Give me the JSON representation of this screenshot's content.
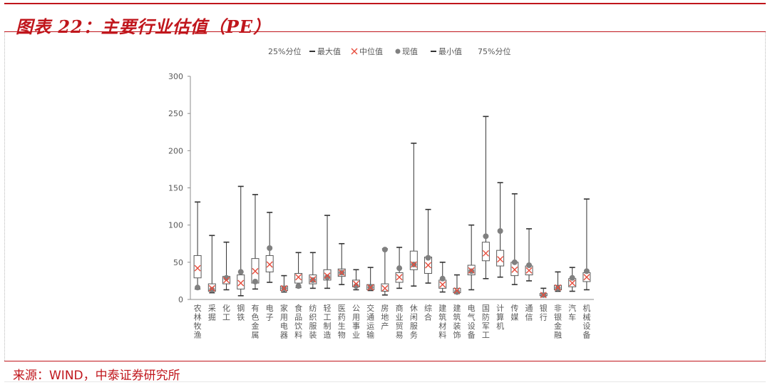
{
  "header": {
    "title": "图表 22：主要行业估值（PE）"
  },
  "footer": {
    "source": "来源：WIND，中泰证券研究所"
  },
  "colors": {
    "accent": "#c0161c",
    "box": "#595959",
    "median": "#e74c3c",
    "current": "#808080"
  },
  "chart_data": {
    "type": "boxplot",
    "title": "",
    "xlabel": "",
    "ylabel": "",
    "ylim": [
      0,
      300
    ],
    "yticks": [
      0,
      50,
      100,
      150,
      200,
      250,
      300
    ],
    "grid": false,
    "legend_position": "top-center",
    "legend": [
      "25%分位",
      "最大值",
      "中位值",
      "现值",
      "最小值",
      "75%分位"
    ],
    "categories": [
      "农林牧渔",
      "采掘",
      "化工",
      "钢铁",
      "有色金属",
      "电子",
      "家用电器",
      "食品饮料",
      "纺织服装",
      "轻工制造",
      "医药生物",
      "公用事业",
      "交通运输",
      "房地产",
      "商业贸易",
      "休闲服务",
      "综合",
      "建筑材料",
      "建筑装饰",
      "电气设备",
      "国防军工",
      "计算机",
      "传媒",
      "通信",
      "银行",
      "非银金融",
      "汽车",
      "机械设备"
    ],
    "series": [
      {
        "name": "25%分位",
        "values": [
          29,
          11,
          21,
          14,
          22,
          37,
          12,
          22,
          21,
          26,
          31,
          17,
          13,
          11,
          23,
          40,
          35,
          15,
          9,
          33,
          52,
          45,
          32,
          33,
          5,
          13,
          17,
          24
        ]
      },
      {
        "name": "最大值",
        "values": [
          131,
          86,
          77,
          152,
          141,
          117,
          32,
          63,
          63,
          113,
          75,
          40,
          43,
          68,
          70,
          210,
          121,
          50,
          33,
          100,
          246,
          157,
          142,
          95,
          15,
          37,
          43,
          135
        ]
      },
      {
        "name": "中位值",
        "values": [
          42,
          15,
          26,
          22,
          38,
          47,
          15,
          30,
          27,
          32,
          36,
          21,
          16,
          15,
          30,
          47,
          46,
          20,
          12,
          39,
          62,
          54,
          40,
          39,
          6,
          16,
          22,
          30
        ]
      },
      {
        "name": "现值",
        "values": [
          16,
          13,
          29,
          37,
          24,
          69,
          15,
          18,
          26,
          30,
          36,
          18,
          16,
          67,
          42,
          47,
          56,
          28,
          10,
          38,
          85,
          92,
          50,
          46,
          6,
          15,
          29,
          38
        ]
      },
      {
        "name": "最小值",
        "values": [
          14,
          9,
          13,
          5,
          14,
          23,
          10,
          16,
          15,
          15,
          20,
          13,
          12,
          6,
          15,
          18,
          22,
          10,
          8,
          13,
          28,
          30,
          20,
          25,
          4,
          11,
          11,
          13
        ]
      },
      {
        "name": "75%分位",
        "values": [
          59,
          21,
          31,
          33,
          55,
          59,
          18,
          35,
          33,
          40,
          41,
          26,
          20,
          21,
          36,
          65,
          57,
          26,
          15,
          46,
          77,
          66,
          50,
          45,
          8,
          19,
          28,
          36
        ]
      }
    ]
  }
}
